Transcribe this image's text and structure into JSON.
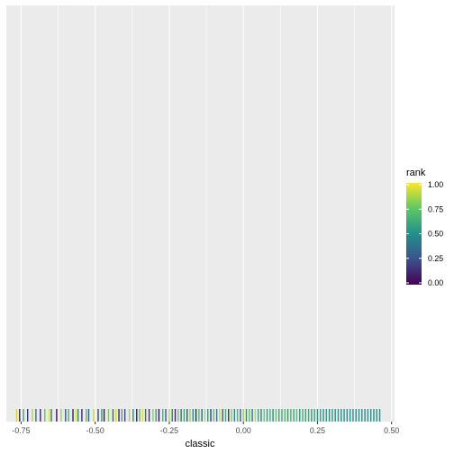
{
  "chart_data": {
    "type": "rug",
    "xlabel": "classic",
    "ylabel": "",
    "xlim": [
      -0.8,
      0.51
    ],
    "x_ticks": [
      -0.75,
      -0.5,
      -0.25,
      0.0,
      0.25,
      0.5
    ],
    "x_tick_labels": [
      "-0.75",
      "-0.50",
      "-0.25",
      "0.00",
      "0.25",
      "0.50"
    ],
    "grid": true,
    "legend": {
      "title": "rank",
      "placement": "right",
      "type": "colorbar",
      "palette": "viridis",
      "ticks": [
        0.0,
        0.25,
        0.5,
        0.75,
        1.0
      ],
      "tick_labels": [
        "0.00",
        "0.25",
        "0.50",
        "0.75",
        "1.00"
      ],
      "colors": [
        "#440154",
        "#3b528b",
        "#21908d",
        "#5dc863",
        "#fde725"
      ]
    },
    "points": [
      {
        "x": -0.765,
        "rank": 0.92
      },
      {
        "x": -0.755,
        "rank": 0.05
      },
      {
        "x": -0.742,
        "rank": 0.6
      },
      {
        "x": -0.728,
        "rank": 0.15
      },
      {
        "x": -0.712,
        "rank": 0.88
      },
      {
        "x": -0.7,
        "rank": 0.35
      },
      {
        "x": -0.685,
        "rank": 0.1
      },
      {
        "x": -0.67,
        "rank": 0.75
      },
      {
        "x": -0.655,
        "rank": 0.95
      },
      {
        "x": -0.648,
        "rank": 0.4
      },
      {
        "x": -0.63,
        "rank": 0.02
      },
      {
        "x": -0.615,
        "rank": 0.85
      },
      {
        "x": -0.6,
        "rank": 0.25
      },
      {
        "x": -0.59,
        "rank": 0.65
      },
      {
        "x": -0.575,
        "rank": 0.08
      },
      {
        "x": -0.565,
        "rank": 0.97
      },
      {
        "x": -0.558,
        "rank": 0.45
      },
      {
        "x": -0.545,
        "rank": 0.12
      },
      {
        "x": -0.53,
        "rank": 0.7
      },
      {
        "x": -0.522,
        "rank": 0.3
      },
      {
        "x": -0.505,
        "rank": 0.9
      },
      {
        "x": -0.49,
        "rank": 0.18
      },
      {
        "x": -0.478,
        "rank": 0.55
      },
      {
        "x": -0.47,
        "rank": 0.04
      },
      {
        "x": -0.455,
        "rank": 0.8
      },
      {
        "x": -0.44,
        "rank": 0.33
      },
      {
        "x": -0.43,
        "rank": 0.93
      },
      {
        "x": -0.42,
        "rank": 0.1
      },
      {
        "x": -0.41,
        "rank": 0.62
      },
      {
        "x": -0.4,
        "rank": 0.2
      },
      {
        "x": -0.385,
        "rank": 0.86
      },
      {
        "x": -0.372,
        "rank": 0.48
      },
      {
        "x": -0.36,
        "rank": 0.07
      },
      {
        "x": -0.35,
        "rank": 0.72
      },
      {
        "x": -0.34,
        "rank": 0.95
      },
      {
        "x": -0.33,
        "rank": 0.38
      },
      {
        "x": -0.318,
        "rank": 0.15
      },
      {
        "x": -0.305,
        "rank": 0.82
      },
      {
        "x": -0.295,
        "rank": 0.58
      },
      {
        "x": -0.285,
        "rank": 0.03
      },
      {
        "x": -0.272,
        "rank": 0.66
      },
      {
        "x": -0.262,
        "rank": 0.28
      },
      {
        "x": -0.25,
        "rank": 0.9
      },
      {
        "x": -0.24,
        "rank": 0.45
      },
      {
        "x": -0.23,
        "rank": 0.12
      },
      {
        "x": -0.22,
        "rank": 0.78
      },
      {
        "x": -0.21,
        "rank": 0.35
      },
      {
        "x": -0.2,
        "rank": 0.6
      },
      {
        "x": -0.19,
        "rank": 0.22
      },
      {
        "x": -0.18,
        "rank": 0.84
      },
      {
        "x": -0.17,
        "rank": 0.5
      },
      {
        "x": -0.16,
        "rank": 0.08
      },
      {
        "x": -0.15,
        "rank": 0.7
      },
      {
        "x": -0.14,
        "rank": 0.32
      },
      {
        "x": -0.13,
        "rank": 0.88
      },
      {
        "x": -0.12,
        "rank": 0.55
      },
      {
        "x": -0.11,
        "rank": 0.18
      },
      {
        "x": -0.1,
        "rank": 0.74
      },
      {
        "x": -0.09,
        "rank": 0.4
      },
      {
        "x": -0.08,
        "rank": 0.92
      },
      {
        "x": -0.07,
        "rank": 0.26
      },
      {
        "x": -0.06,
        "rank": 0.63
      },
      {
        "x": -0.05,
        "rank": 0.14
      },
      {
        "x": -0.04,
        "rank": 0.8
      },
      {
        "x": -0.03,
        "rank": 0.47
      },
      {
        "x": -0.02,
        "rank": 0.68
      },
      {
        "x": -0.01,
        "rank": 0.3
      },
      {
        "x": 0.0,
        "rank": 0.85
      },
      {
        "x": 0.01,
        "rank": 0.52
      },
      {
        "x": 0.02,
        "rank": 0.72
      },
      {
        "x": 0.03,
        "rank": 0.38
      },
      {
        "x": 0.04,
        "rank": 0.9
      },
      {
        "x": 0.05,
        "rank": 0.6
      },
      {
        "x": 0.06,
        "rank": 0.45
      },
      {
        "x": 0.07,
        "rank": 0.78
      },
      {
        "x": 0.08,
        "rank": 0.55
      },
      {
        "x": 0.09,
        "rank": 0.66
      },
      {
        "x": 0.1,
        "rank": 0.5
      },
      {
        "x": 0.11,
        "rank": 0.74
      },
      {
        "x": 0.12,
        "rank": 0.58
      },
      {
        "x": 0.13,
        "rank": 0.62
      },
      {
        "x": 0.14,
        "rank": 0.7
      },
      {
        "x": 0.15,
        "rank": 0.54
      },
      {
        "x": 0.16,
        "rank": 0.66
      },
      {
        "x": 0.17,
        "rank": 0.6
      },
      {
        "x": 0.18,
        "rank": 0.72
      },
      {
        "x": 0.19,
        "rank": 0.56
      },
      {
        "x": 0.2,
        "rank": 0.64
      },
      {
        "x": 0.21,
        "rank": 0.58
      },
      {
        "x": 0.22,
        "rank": 0.62
      },
      {
        "x": 0.23,
        "rank": 0.55
      },
      {
        "x": 0.24,
        "rank": 0.6
      },
      {
        "x": 0.25,
        "rank": 0.53
      },
      {
        "x": 0.26,
        "rank": 0.58
      },
      {
        "x": 0.27,
        "rank": 0.52
      },
      {
        "x": 0.28,
        "rank": 0.55
      },
      {
        "x": 0.29,
        "rank": 0.5
      },
      {
        "x": 0.3,
        "rank": 0.54
      },
      {
        "x": 0.31,
        "rank": 0.51
      },
      {
        "x": 0.32,
        "rank": 0.53
      },
      {
        "x": 0.33,
        "rank": 0.5
      },
      {
        "x": 0.34,
        "rank": 0.52
      },
      {
        "x": 0.35,
        "rank": 0.51
      },
      {
        "x": 0.36,
        "rank": 0.5
      },
      {
        "x": 0.37,
        "rank": 0.52
      },
      {
        "x": 0.38,
        "rank": 0.51
      },
      {
        "x": 0.39,
        "rank": 0.5
      },
      {
        "x": 0.4,
        "rank": 0.51
      },
      {
        "x": 0.41,
        "rank": 0.5
      },
      {
        "x": 0.42,
        "rank": 0.52
      },
      {
        "x": 0.43,
        "rank": 0.51
      },
      {
        "x": 0.44,
        "rank": 0.5
      },
      {
        "x": 0.45,
        "rank": 0.51
      },
      {
        "x": 0.46,
        "rank": 0.5
      }
    ]
  }
}
